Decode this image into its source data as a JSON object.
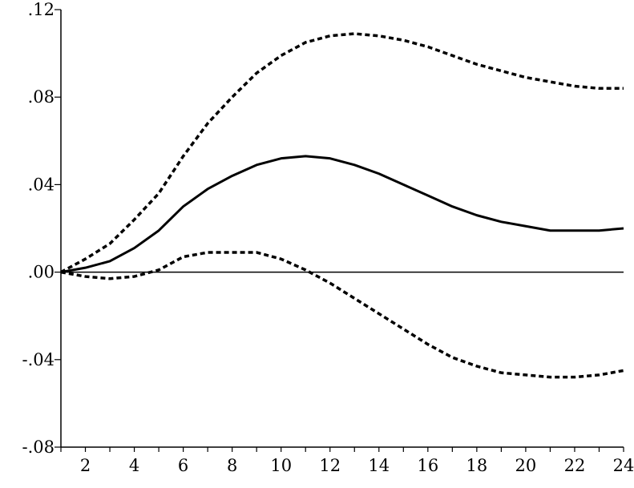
{
  "chart_data": {
    "type": "line",
    "title": "",
    "xlabel": "",
    "ylabel": "",
    "xlim": [
      1,
      24
    ],
    "ylim": [
      -0.08,
      0.12
    ],
    "x_ticks": [
      2,
      4,
      6,
      8,
      10,
      12,
      14,
      16,
      18,
      20,
      22,
      24
    ],
    "x_tick_labels": [
      "2",
      "4",
      "6",
      "8",
      "10",
      "12",
      "14",
      "16",
      "18",
      "20",
      "22",
      "24"
    ],
    "y_ticks": [
      0.12,
      0.08,
      0.04,
      0.0,
      -0.04,
      -0.08
    ],
    "y_tick_labels": [
      ".12",
      ".08",
      ".04",
      ".00",
      "-.04",
      "-.08"
    ],
    "zero_line": true,
    "grid": false,
    "legend": "none",
    "x": [
      1,
      2,
      3,
      4,
      5,
      6,
      7,
      8,
      9,
      10,
      11,
      12,
      13,
      14,
      15,
      16,
      17,
      18,
      19,
      20,
      21,
      22,
      23,
      24
    ],
    "series": [
      {
        "style": "dashed",
        "values": [
          0.0,
          0.006,
          0.013,
          0.024,
          0.036,
          0.053,
          0.068,
          0.08,
          0.091,
          0.099,
          0.105,
          0.108,
          0.109,
          0.108,
          0.106,
          0.103,
          0.099,
          0.095,
          0.092,
          0.089,
          0.087,
          0.085,
          0.084,
          0.084
        ]
      },
      {
        "style": "solid",
        "values": [
          0.0,
          0.002,
          0.005,
          0.011,
          0.019,
          0.03,
          0.038,
          0.044,
          0.049,
          0.052,
          0.053,
          0.052,
          0.049,
          0.045,
          0.04,
          0.035,
          0.03,
          0.026,
          0.023,
          0.021,
          0.019,
          0.019,
          0.019,
          0.02
        ]
      },
      {
        "style": "dashed",
        "values": [
          0.0,
          -0.002,
          -0.003,
          -0.002,
          0.001,
          0.007,
          0.009,
          0.009,
          0.009,
          0.006,
          0.001,
          -0.005,
          -0.012,
          -0.019,
          -0.026,
          -0.033,
          -0.039,
          -0.043,
          -0.046,
          -0.047,
          -0.048,
          -0.048,
          -0.047,
          -0.045
        ]
      }
    ]
  }
}
